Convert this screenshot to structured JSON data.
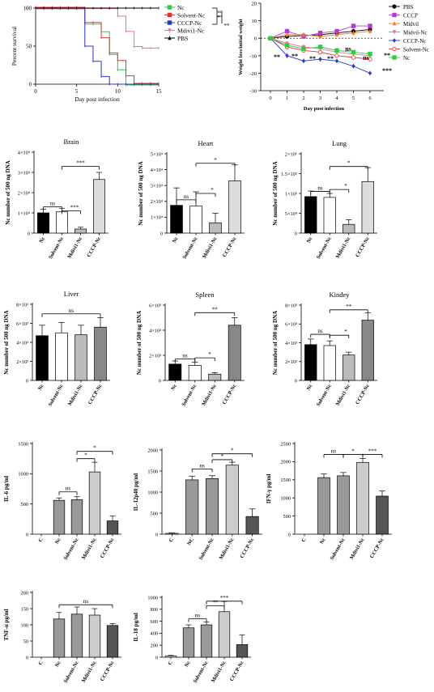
{
  "panels": {
    "survival": {
      "ylabel": "Percent survival",
      "xlabel": "Day post infection",
      "yticks": [
        "0",
        "50",
        "100"
      ],
      "xticks": [
        "0",
        "5",
        "10",
        "15"
      ],
      "sig": [
        "ns",
        "*",
        "**"
      ]
    },
    "weight": {
      "ylabel": "Weight loss/initial weight",
      "xlabel": "Day post infection",
      "yticks": [
        "20",
        "10",
        "0",
        "-10",
        "-20",
        "-30"
      ],
      "xticks": [
        "0",
        "1",
        "2",
        "3",
        "4",
        "5",
        "6"
      ],
      "sig": [
        "**",
        "**",
        "**",
        "**",
        "ns",
        "ns",
        "**",
        "***"
      ]
    }
  },
  "chart_data": [
    {
      "type": "line",
      "x": [
        0,
        1,
        2,
        3,
        4,
        5,
        6,
        7,
        8,
        9,
        10,
        11,
        12,
        13,
        14,
        15
      ],
      "xlabel": "Day post infection",
      "ylabel": "Percent survival",
      "ylim": [
        0,
        100
      ],
      "xlim": [
        0,
        15
      ],
      "legend": "top-right",
      "series": [
        {
          "name": "Nc",
          "color": "#2ecc40",
          "values": [
            100,
            100,
            100,
            100,
            100,
            100,
            80,
            80,
            70,
            40,
            20,
            0,
            0,
            0,
            0,
            0
          ]
        },
        {
          "name": "Solvent-Nc",
          "color": "#e0303a",
          "values": [
            100,
            100,
            100,
            100,
            100,
            100,
            80,
            80,
            60,
            40,
            30,
            10,
            0,
            0,
            0,
            0
          ]
        },
        {
          "name": "CCCP-Nc",
          "color": "#2a37c9",
          "values": [
            100,
            100,
            100,
            100,
            100,
            100,
            50,
            30,
            10,
            0,
            0,
            0,
            0,
            0,
            0,
            0
          ]
        },
        {
          "name": "Mdivi1-Nc",
          "color": "#f06aa0",
          "values": [
            100,
            100,
            100,
            100,
            100,
            100,
            100,
            100,
            100,
            100,
            90,
            70,
            50,
            48,
            48,
            48
          ]
        },
        {
          "name": "PBS",
          "color": "#000000",
          "values": [
            100,
            100,
            100,
            100,
            100,
            100,
            100,
            100,
            100,
            100,
            100,
            100,
            100,
            100,
            100,
            100
          ]
        }
      ]
    },
    {
      "type": "line",
      "x": [
        0,
        1,
        2,
        3,
        4,
        5,
        6
      ],
      "xlabel": "Day post infection",
      "ylabel": "Weight loss/initial weight",
      "ylim": [
        -30,
        20
      ],
      "legend": "right",
      "series": [
        {
          "name": "PBS",
          "color": "#000000",
          "values": [
            0,
            1,
            1.5,
            2,
            3,
            4,
            5
          ]
        },
        {
          "name": "CCCP",
          "color": "#b03cd0",
          "values": [
            0,
            4,
            1,
            3,
            4,
            7,
            7
          ]
        },
        {
          "name": "Midvil",
          "color": "#f07a30",
          "values": [
            0,
            2,
            2,
            1,
            2,
            3,
            4
          ]
        },
        {
          "name": "Midvil-Nc",
          "color": "#f06aa0",
          "values": [
            0,
            -3,
            -5,
            -6,
            -8,
            -9,
            -10
          ]
        },
        {
          "name": "CCCP-Nc",
          "color": "#2a37c9",
          "values": [
            0,
            -10,
            -13,
            -12,
            -13,
            -16,
            -20
          ]
        },
        {
          "name": "Solvent-Nc",
          "color": "#e0303a",
          "values": [
            0,
            -5,
            -7,
            -8,
            -10,
            -11,
            -12
          ]
        },
        {
          "name": "Nc",
          "color": "#2ecc40",
          "values": [
            0,
            -4,
            -6,
            -5,
            -7,
            -8,
            -9
          ]
        }
      ]
    },
    {
      "type": "bar",
      "title": "Brain",
      "ylabel": "Nc number of 500 ng DNA",
      "categories": [
        "Nc",
        "Solvent-Nc",
        "Mdivi1-Nc",
        "CCCP-Nc"
      ],
      "values": [
        10000,
        10500,
        2000,
        26500
      ],
      "errors": [
        1800,
        1800,
        900,
        3500
      ],
      "colors": [
        "#000000",
        "#ffffff",
        "#bbbbbb",
        "#dddddd"
      ],
      "ylim": [
        0,
        40000
      ],
      "yticks": [
        "0",
        "1×10⁴",
        "2×10⁴",
        "3×10⁴",
        "4×10⁴"
      ],
      "sig": [
        "ns",
        "***",
        "***"
      ]
    },
    {
      "type": "bar",
      "title": "Heart",
      "ylabel": "Nc number of 500 ng DNA",
      "categories": [
        "Nc",
        "Solvent-Nc",
        "Mdivi1-Nc",
        "CCCP-Nc"
      ],
      "values": [
        17500,
        17000,
        6500,
        33000
      ],
      "errors": [
        11000,
        9000,
        6000,
        10000
      ],
      "colors": [
        "#000000",
        "#ffffff",
        "#bbbbbb",
        "#dddddd"
      ],
      "ylim": [
        0,
        50000
      ],
      "yticks": [
        "0",
        "1×10⁴",
        "2×10⁴",
        "3×10⁴",
        "4×10⁴",
        "5×10⁴"
      ],
      "sig": [
        "ns",
        "*",
        "*"
      ]
    },
    {
      "type": "bar",
      "title": "Lung",
      "ylabel": "Nc number of 500 ng DNA",
      "categories": [
        "Nc",
        "Solvent-Nc",
        "Mdivi1-Nc",
        "CCCP-Nc"
      ],
      "values": [
        92000,
        90000,
        22000,
        130000
      ],
      "errors": [
        14000,
        10000,
        12000,
        35000
      ],
      "colors": [
        "#000000",
        "#ffffff",
        "#bbbbbb",
        "#dddddd"
      ],
      "ylim": [
        0,
        200000
      ],
      "yticks": [
        "0",
        "5×10⁴",
        "1×10⁵",
        "1.5×10⁵",
        "2×10⁵"
      ],
      "sig": [
        "ns",
        "*",
        "*"
      ]
    },
    {
      "type": "bar",
      "title": "Liver",
      "ylabel": "Nc number of 500 ng DNA",
      "categories": [
        "Nc",
        "Solvent-Nc",
        "Mdivi1-Nc",
        "CCCP-Nc"
      ],
      "values": [
        4700,
        5000,
        4800,
        5600
      ],
      "errors": [
        1100,
        1100,
        1000,
        1000
      ],
      "colors": [
        "#000000",
        "#ffffff",
        "#bbbbbb",
        "#888888"
      ],
      "ylim": [
        0,
        8000
      ],
      "yticks": [
        "0",
        "2×10³",
        "4×10³",
        "6×10³",
        "8×10³"
      ],
      "sig": [
        "ns"
      ]
    },
    {
      "type": "bar",
      "title": "Spleen",
      "ylabel": "Nc number of 500 ng DNA",
      "categories": [
        "Nc",
        "Solvent-Nc",
        "Mdivi1-Nc",
        "CCCP-Nc"
      ],
      "values": [
        1300,
        1200,
        500,
        4400
      ],
      "errors": [
        250,
        250,
        120,
        600
      ],
      "colors": [
        "#000000",
        "#ffffff",
        "#bbbbbb",
        "#888888"
      ],
      "ylim": [
        0,
        6000
      ],
      "yticks": [
        "0",
        "2×10³",
        "4×10³",
        "6×10³"
      ],
      "sig": [
        "ns",
        "*",
        "**"
      ]
    },
    {
      "type": "bar",
      "title": "Kindey",
      "ylabel": "Nc number of 500 ng DNA",
      "categories": [
        "Nc",
        "Solvent-Nc",
        "Mdivi1-Nc",
        "CCCP-Nc"
      ],
      "values": [
        3800,
        3700,
        2700,
        6400
      ],
      "errors": [
        600,
        500,
        300,
        800
      ],
      "colors": [
        "#000000",
        "#ffffff",
        "#bbbbbb",
        "#888888"
      ],
      "ylim": [
        0,
        8000
      ],
      "yticks": [
        "0",
        "2×10³",
        "4×10³",
        "6×10³",
        "8×10³"
      ],
      "sig": [
        "ns",
        "*",
        "**"
      ]
    },
    {
      "type": "bar",
      "title": "",
      "ylabel": "IL-6 pg/ml",
      "categories": [
        "C",
        "Nc",
        "Solvent-Nc",
        "Mdivi1-Nc",
        "CCCP-Nc"
      ],
      "values": [
        0,
        560,
        570,
        1030,
        220
      ],
      "errors": [
        0,
        40,
        50,
        160,
        80
      ],
      "colors": [
        "#ffffff",
        "#999999",
        "#999999",
        "#cccccc",
        "#555555"
      ],
      "ylim": [
        0,
        1500
      ],
      "yticks": [
        "0",
        "500",
        "1000",
        "1500"
      ],
      "sig": [
        "ns",
        "*",
        "*",
        "***"
      ]
    },
    {
      "type": "bar",
      "title": "",
      "ylabel": "IL-12p40 pg/ml",
      "categories": [
        "C",
        "NC",
        "Solvent-Nc",
        "Mdivi1-Nc",
        "CCCP-Nc"
      ],
      "values": [
        20,
        1290,
        1320,
        1640,
        420
      ],
      "errors": [
        10,
        90,
        70,
        70,
        180
      ],
      "colors": [
        "#ffffff",
        "#999999",
        "#999999",
        "#cccccc",
        "#555555"
      ],
      "ylim": [
        0,
        2000
      ],
      "yticks": [
        "0",
        "500",
        "1000",
        "1500",
        "2000"
      ],
      "sig": [
        "ns",
        "*",
        "*",
        "***"
      ]
    },
    {
      "type": "bar",
      "title": "",
      "ylabel": "IFN-γ pg/ml",
      "categories": [
        "C",
        "Nc",
        "Solvent-Nc",
        "Mdivi1-Nc",
        "CCCP-Nc"
      ],
      "values": [
        0,
        1560,
        1610,
        1980,
        1050
      ],
      "errors": [
        0,
        100,
        90,
        110,
        140
      ],
      "colors": [
        "#ffffff",
        "#999999",
        "#999999",
        "#cccccc",
        "#555555"
      ],
      "ylim": [
        0,
        2500
      ],
      "yticks": [
        "0",
        "500",
        "1000",
        "1500",
        "2000",
        "2500"
      ],
      "sig": [
        "ns",
        "*",
        "***"
      ]
    },
    {
      "type": "bar",
      "title": "",
      "ylabel": "TNF-α pg/ml",
      "categories": [
        "C",
        "Nc",
        "Solvent-Nc",
        "Mdivi1-Nc",
        "CCCP-Nc"
      ],
      "values": [
        0,
        118,
        133,
        130,
        98
      ],
      "errors": [
        0,
        20,
        22,
        20,
        6
      ],
      "colors": [
        "#ffffff",
        "#999999",
        "#999999",
        "#cccccc",
        "#555555"
      ],
      "ylim": [
        0,
        200
      ],
      "yticks": [
        "0",
        "50",
        "100",
        "150",
        "200"
      ],
      "sig": [
        "ns"
      ]
    },
    {
      "type": "bar",
      "title": "",
      "ylabel": "IL-18 pg/ml",
      "categories": [
        "C",
        "Nc",
        "Solvent-Nc",
        "Mdivi1-Nc",
        "CCCP-Nc"
      ],
      "values": [
        20,
        490,
        540,
        760,
        210
      ],
      "errors": [
        10,
        50,
        50,
        170,
        160
      ],
      "colors": [
        "#ffffff",
        "#999999",
        "#999999",
        "#cccccc",
        "#555555"
      ],
      "ylim": [
        0,
        1000
      ],
      "yticks": [
        "0",
        "200",
        "400",
        "600",
        "800",
        "1000"
      ],
      "sig": [
        "ns",
        "**",
        "***"
      ]
    }
  ]
}
